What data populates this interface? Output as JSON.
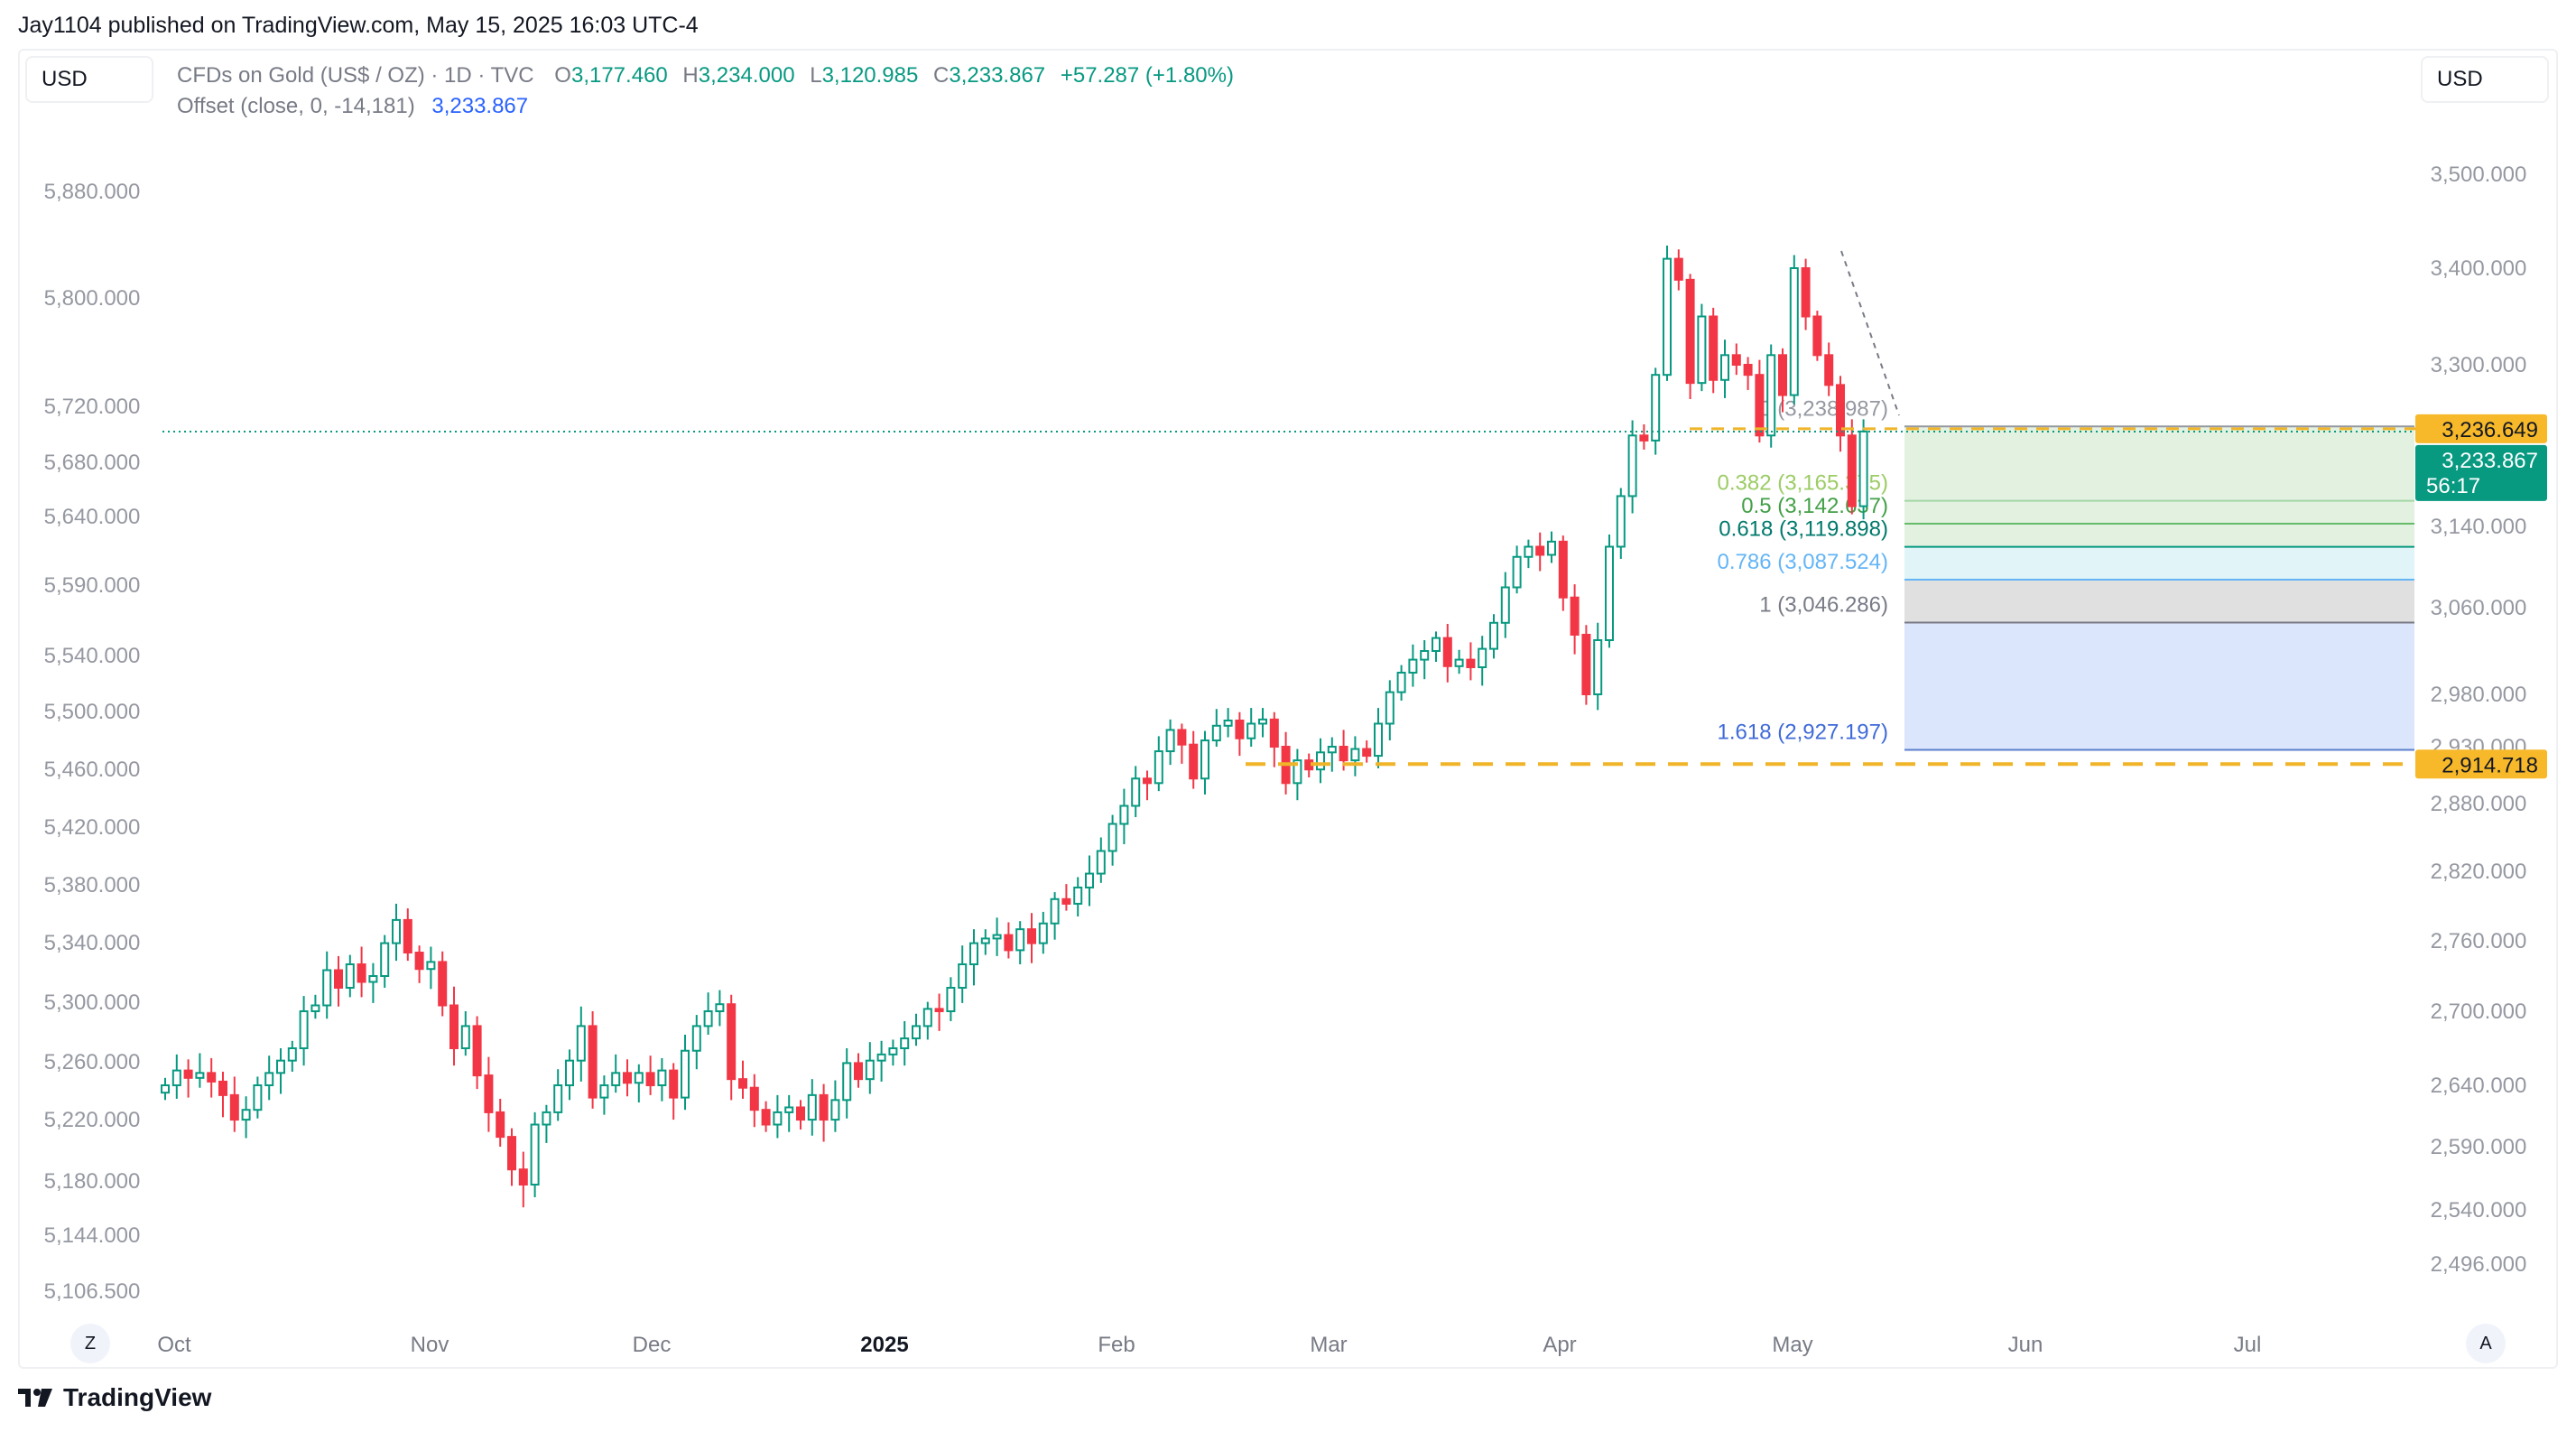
{
  "header": {
    "publish_line": "Jay1104 published on TradingView.com, May 15, 2025 16:03 UTC-4"
  },
  "left_scale_currency": "USD",
  "right_scale_currency": "USD",
  "legend": {
    "symbol": "CFDs on Gold (US$ / OZ) · 1D · TVC",
    "o_label": "O",
    "o_value": "3,177.460",
    "h_label": "H",
    "h_value": "3,234.000",
    "l_label": "L",
    "l_value": "3,120.985",
    "c_label": "C",
    "c_value": "3,233.867",
    "change": "+57.287 (+1.80%)",
    "offset_label": "Offset (close, 0, -14,181)",
    "offset_value": "3,233.867"
  },
  "bottom_buttons": {
    "left": "Z",
    "right": "A"
  },
  "brand": {
    "name": "TradingView"
  },
  "colors": {
    "up": "#089981",
    "down": "#f23645",
    "fib_line": "#f0b429",
    "price_badge": "#089981",
    "level_badge": "#f7b92a",
    "offset_blue": "#2962ff"
  },
  "chart_data": {
    "type": "candlestick",
    "title": "CFDs on Gold (US$ / OZ) · 1D · TVC",
    "right_axis": {
      "label": "USD",
      "ticks": [
        "3,500.000",
        "3,400.000",
        "3,300.000",
        "3,140.000",
        "3,060.000",
        "2,980.000",
        "2,930.000",
        "2,880.000",
        "2,820.000",
        "2,760.000",
        "2,700.000",
        "2,640.000",
        "2,590.000",
        "2,540.000",
        "2,496.000"
      ]
    },
    "left_axis": {
      "label": "USD",
      "ticks": [
        "5,880.000",
        "5,800.000",
        "5,720.000",
        "5,680.000",
        "5,640.000",
        "5,590.000",
        "5,540.000",
        "5,500.000",
        "5,460.000",
        "5,420.000",
        "5,380.000",
        "5,340.000",
        "5,300.000",
        "5,260.000",
        "5,220.000",
        "5,180.000",
        "5,144.000",
        "5,106.500"
      ]
    },
    "x_axis": {
      "ticks": [
        "Oct",
        "Nov",
        "Dec",
        "2025",
        "Feb",
        "Mar",
        "Apr",
        "May",
        "Jun",
        "Jul"
      ]
    },
    "last_price": {
      "value": "3,233.867",
      "countdown": "56:17"
    },
    "level_badges": [
      "3,236.649",
      "2,914.718"
    ],
    "fib_retracement": [
      {
        "ratio": 0,
        "price": 3238.987,
        "label": "0 (3,238.987)"
      },
      {
        "ratio": 0.382,
        "price": 3165.375,
        "label": "0.382 (3,165.375)"
      },
      {
        "ratio": 0.5,
        "price": 3142.637,
        "label": "0.5 (3,142.637)"
      },
      {
        "ratio": 0.618,
        "price": 3119.898,
        "label": "0.618 (3,119.898)"
      },
      {
        "ratio": 0.786,
        "price": 3087.524,
        "label": "0.786 (3,087.524)"
      },
      {
        "ratio": 1,
        "price": 3046.286,
        "label": "1 (3,046.286)"
      },
      {
        "ratio": 1.618,
        "price": 2927.197,
        "label": "1.618 (2,927.197)"
      }
    ],
    "close_series": [
      2640,
      2652,
      2646,
      2650,
      2643,
      2632,
      2612,
      2620,
      2640,
      2650,
      2660,
      2670,
      2700,
      2705,
      2735,
      2720,
      2740,
      2725,
      2730,
      2758,
      2778,
      2750,
      2736,
      2742,
      2705,
      2670,
      2688,
      2648,
      2618,
      2598,
      2572,
      2560,
      2608,
      2618,
      2640,
      2660,
      2688,
      2630,
      2640,
      2650,
      2642,
      2650,
      2640,
      2652,
      2630,
      2668,
      2688,
      2700,
      2706,
      2645,
      2638,
      2620,
      2608,
      2618,
      2622,
      2612,
      2632,
      2612,
      2628,
      2658,
      2645,
      2660,
      2665,
      2670,
      2678,
      2688,
      2702,
      2700,
      2720,
      2740,
      2758,
      2762,
      2765,
      2752,
      2770,
      2758,
      2775,
      2796,
      2792,
      2806,
      2818,
      2838,
      2862,
      2878,
      2902,
      2898,
      2926,
      2946,
      2932,
      2902,
      2936,
      2950,
      2955,
      2938,
      2952,
      2956,
      2930,
      2898,
      2918,
      2910,
      2925,
      2930,
      2918,
      2928,
      2922,
      2952,
      2982,
      3000,
      3012,
      3020,
      3032,
      3006,
      3012,
      3005,
      3022,
      3046,
      3080,
      3110,
      3120,
      3112,
      3125,
      3070,
      3035,
      2980,
      3030,
      3120,
      3170,
      3230,
      3225,
      3290,
      3410,
      3388,
      3282,
      3350,
      3285,
      3310,
      3300,
      3290,
      3230,
      3310,
      3270,
      3400,
      3350,
      3310,
      3280,
      3230,
      3160,
      3234
    ],
    "monthly_close_approx": {
      "Oct": 2690,
      "Nov": 2640,
      "Dec": 2620,
      "Jan": 2790,
      "Feb": 2855,
      "Mar": 3120,
      "Apr": 3290,
      "May": 3234
    }
  }
}
